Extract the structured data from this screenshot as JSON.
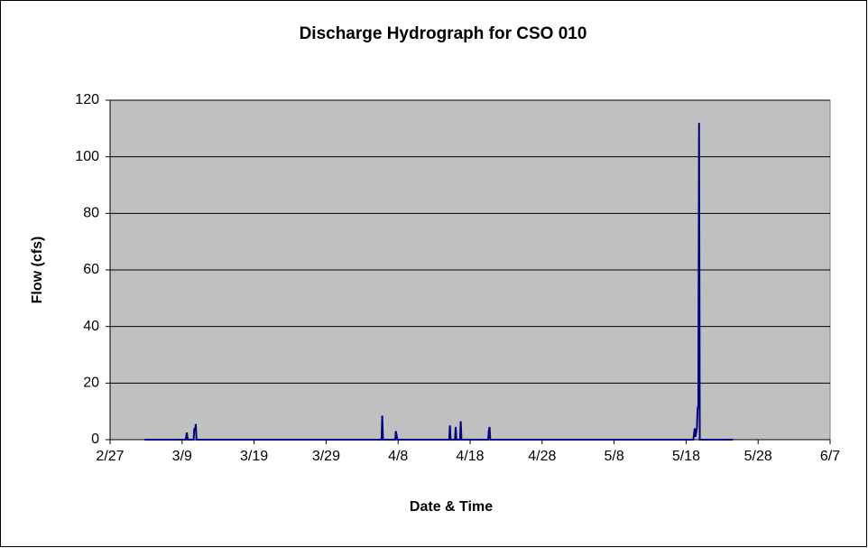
{
  "chart_data": {
    "type": "line",
    "title": "Discharge Hydrograph for CSO 010",
    "x_label": "Date & Time",
    "y_label": "Flow (cfs)",
    "x": [
      4.8,
      10.5,
      10.65,
      10.8,
      11.6,
      11.7,
      11.8,
      11.9,
      12.0,
      37.7,
      37.8,
      37.9,
      39.6,
      39.7,
      39.9,
      47.1,
      47.2,
      47.3,
      47.9,
      48.0,
      48.1,
      48.6,
      48.7,
      48.8,
      52.5,
      52.6,
      52.7,
      52.8,
      81.0,
      81.2,
      81.3,
      81.5,
      81.6,
      81.7,
      81.8,
      81.9,
      86.5
    ],
    "series": [
      {
        "name": "Flow",
        "color": "#000080",
        "values": [
          0,
          0,
          2.5,
          0,
          0,
          4,
          3,
          5.5,
          0,
          0,
          8.5,
          0,
          0,
          3,
          0,
          0,
          5,
          0,
          0,
          4.5,
          0,
          0,
          6.5,
          0,
          0,
          3,
          4.5,
          0,
          0,
          4,
          1,
          4,
          11,
          12,
          112,
          0,
          0
        ]
      }
    ],
    "xlim": [
      0,
      100
    ],
    "xticks": [
      {
        "value": 0,
        "label": "2/27"
      },
      {
        "value": 10,
        "label": "3/9"
      },
      {
        "value": 20,
        "label": "3/19"
      },
      {
        "value": 30,
        "label": "3/29"
      },
      {
        "value": 40,
        "label": "4/8"
      },
      {
        "value": 50,
        "label": "4/18"
      },
      {
        "value": 60,
        "label": "4/28"
      },
      {
        "value": 70,
        "label": "5/8"
      },
      {
        "value": 80,
        "label": "5/18"
      },
      {
        "value": 90,
        "label": "5/28"
      },
      {
        "value": 100,
        "label": "6/7"
      }
    ],
    "ylim": [
      0,
      120
    ],
    "yticks": [
      0,
      20,
      40,
      60,
      80,
      100,
      120
    ],
    "grid": true,
    "plot_background": "#c0c0c0"
  }
}
